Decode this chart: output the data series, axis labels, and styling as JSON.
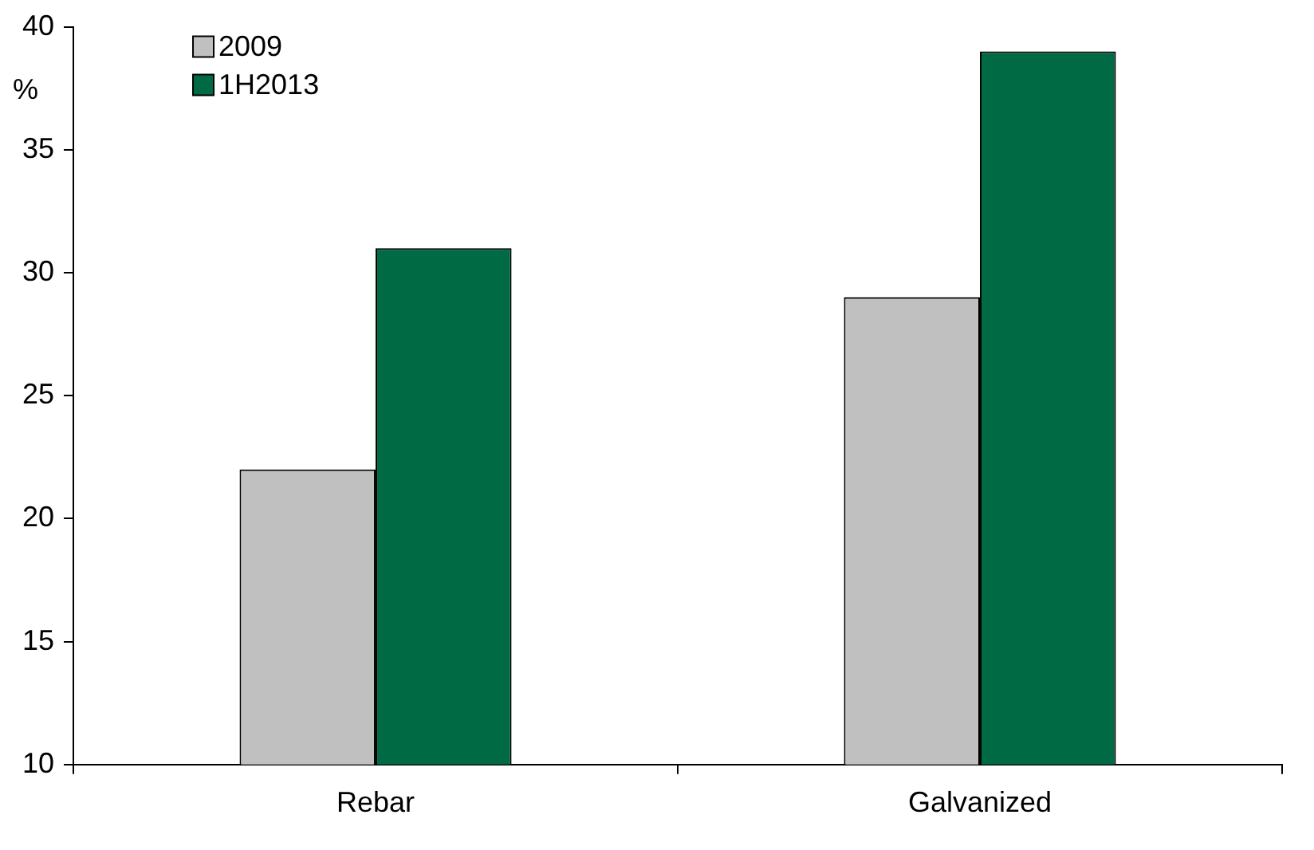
{
  "chart_data": {
    "type": "bar",
    "ylabel": "%",
    "categories": [
      "Rebar",
      "Galvanized"
    ],
    "series": [
      {
        "name": "2009",
        "color": "#c0c0c0",
        "values": [
          22,
          29
        ]
      },
      {
        "name": "1H2013",
        "color": "#006a44",
        "values": [
          31,
          39
        ]
      }
    ],
    "ylim": [
      10,
      40
    ],
    "yticks": [
      10,
      15,
      20,
      25,
      30,
      35,
      40
    ],
    "grid": false,
    "legend": "top left"
  }
}
